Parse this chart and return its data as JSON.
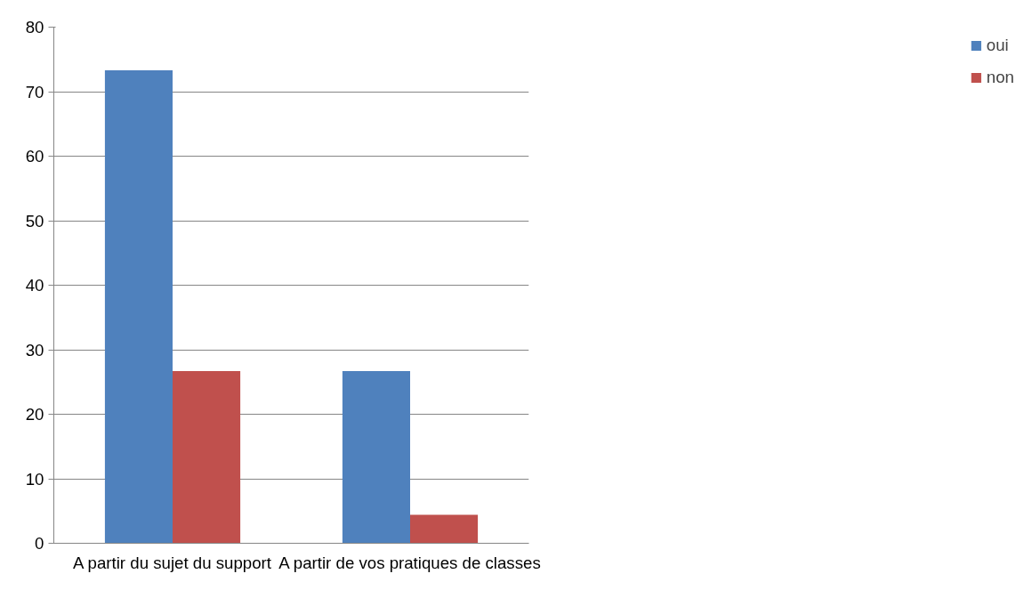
{
  "chart_data": {
    "type": "bar",
    "categories": [
      "A partir du sujet du support",
      "A partir de vos pratiques de classes"
    ],
    "series": [
      {
        "name": "oui",
        "color": "#4f81bd",
        "values": [
          73.3,
          26.7
        ]
      },
      {
        "name": "non",
        "color": "#c0504d",
        "values": [
          26.7,
          4.4
        ]
      }
    ],
    "ylim": [
      0,
      80
    ],
    "yticks": [
      0,
      10,
      20,
      30,
      40,
      50,
      60,
      70,
      80
    ],
    "grid": "y",
    "legend": "right"
  }
}
